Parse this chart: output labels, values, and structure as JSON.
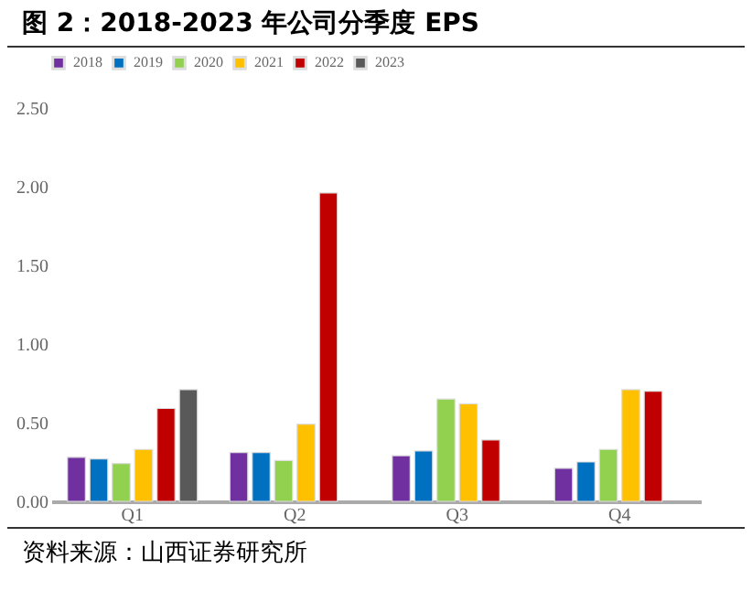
{
  "chart_data": {
    "type": "bar",
    "title": "图 2：2018-2023 年公司分季度 EPS",
    "annotations": [
      "资料来源：山西证券研究所"
    ],
    "categories": [
      "Q1",
      "Q2",
      "Q3",
      "Q4"
    ],
    "series": [
      {
        "name": "2018",
        "color": "#7030a0",
        "values": [
          0.28,
          0.31,
          0.29,
          0.21
        ]
      },
      {
        "name": "2019",
        "color": "#0070c0",
        "values": [
          0.27,
          0.31,
          0.32,
          0.25
        ]
      },
      {
        "name": "2020",
        "color": "#92d050",
        "values": [
          0.24,
          0.26,
          0.65,
          0.33
        ]
      },
      {
        "name": "2021",
        "color": "#ffc000",
        "values": [
          0.33,
          0.49,
          0.62,
          0.71
        ]
      },
      {
        "name": "2022",
        "color": "#c00000",
        "values": [
          0.59,
          1.96,
          0.39,
          0.7
        ]
      },
      {
        "name": "2023",
        "color": "#595959",
        "values": [
          0.71,
          null,
          null,
          null
        ]
      }
    ],
    "ylim": [
      0,
      2.5
    ],
    "yticks": [
      {
        "value": 0,
        "label": "0.00"
      },
      {
        "value": 0.5,
        "label": "0.50"
      },
      {
        "value": 1,
        "label": "1.00"
      },
      {
        "value": 1.5,
        "label": "1.50"
      },
      {
        "value": 2,
        "label": "2.00"
      },
      {
        "value": 2.5,
        "label": "2.50"
      }
    ],
    "grid": false,
    "legend": "top"
  }
}
